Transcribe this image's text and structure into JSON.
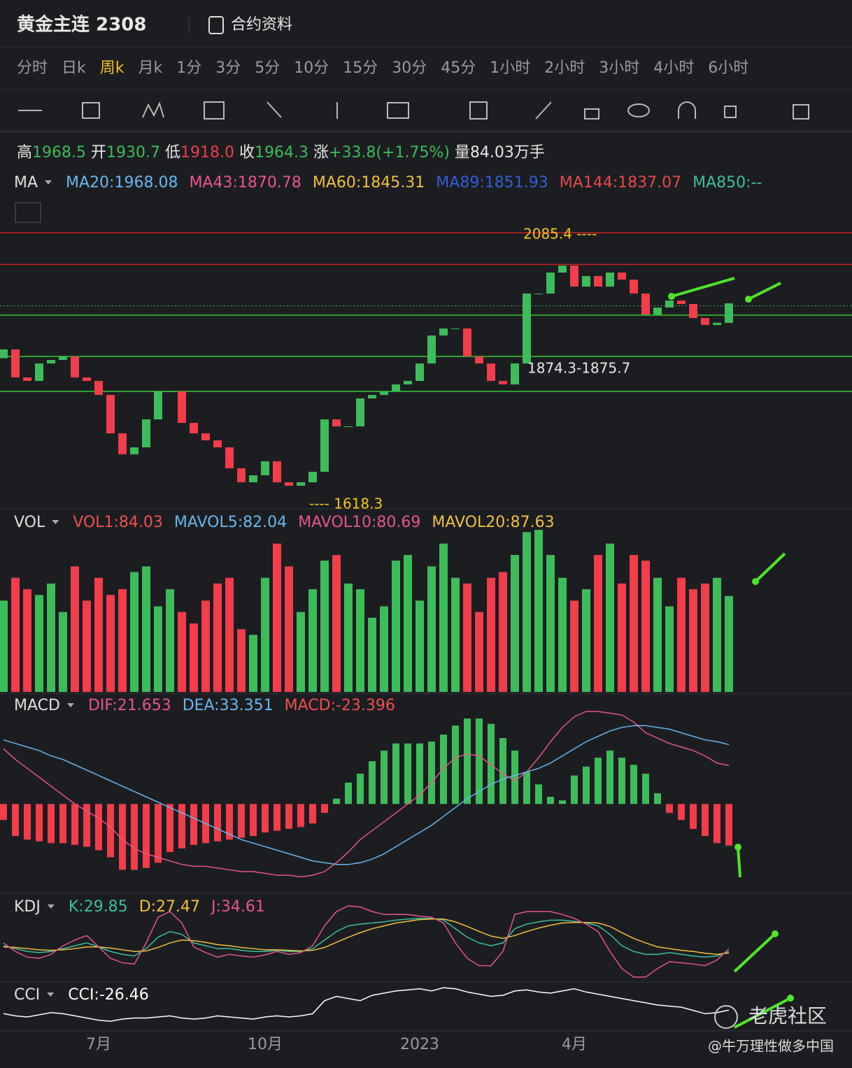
{
  "header": {
    "title": "黄金主连 2308",
    "contract": "合约资料"
  },
  "timeframes": [
    "分时",
    "日k",
    "周k",
    "月k",
    "1分",
    "3分",
    "5分",
    "10分",
    "15分",
    "30分",
    "45分",
    "1小时",
    "2小时",
    "3小时",
    "4小时",
    "6小时"
  ],
  "active_timeframe": "周k",
  "stats": [
    {
      "label": "高",
      "value": "1968.5"
    },
    {
      "label": "开",
      "value": "1930.7"
    },
    {
      "label": "低",
      "value": "1918.0"
    },
    {
      "label": "收",
      "value": "1964.3"
    },
    {
      "label": "涨",
      "value": "+33.8(+1.75%)"
    },
    {
      "label": "量",
      "value": "84.03万手"
    }
  ],
  "legends": {
    "ma": {
      "name": "MA",
      "items": [
        {
          "text": "MA20:1968.08",
          "color": "#6ab7f0"
        },
        {
          "text": "MA43:1870.78",
          "color": "#e8568a"
        },
        {
          "text": "MA60:1845.31",
          "color": "#f0c040"
        },
        {
          "text": "MA89:1851.93",
          "color": "#2f5fd8"
        },
        {
          "text": "MA144:1837.07",
          "color": "#e8484a"
        },
        {
          "text": "MA850:--",
          "color": "#3cc0a0"
        }
      ]
    },
    "vol": {
      "name": "VOL",
      "items": [
        {
          "text": "VOL1:84.03",
          "color": "#f05050"
        },
        {
          "text": "MAVOL5:82.04",
          "color": "#6ab7f0"
        },
        {
          "text": "MAVOL10:80.69",
          "color": "#e8568a"
        },
        {
          "text": "MAVOL20:87.63",
          "color": "#f0c040"
        }
      ]
    },
    "macd": {
      "name": "MACD",
      "items": [
        {
          "text": "DIF:21.653",
          "color": "#e8568a"
        },
        {
          "text": "DEA:33.351",
          "color": "#6ab7f0"
        },
        {
          "text": "MACD:-23.396",
          "color": "#f05050"
        }
      ]
    },
    "kdj": {
      "name": "KDJ",
      "items": [
        {
          "text": "K:29.85",
          "color": "#3cc0a0"
        },
        {
          "text": "D:27.47",
          "color": "#f0c040"
        },
        {
          "text": "J:34.61",
          "color": "#e8568a"
        }
      ]
    },
    "cci": {
      "name": "CCI",
      "items": [
        {
          "text": "CCI:-26.46",
          "color": "#ffffff"
        }
      ]
    }
  },
  "annotations": {
    "high": "2085.4 ----",
    "low": "---- 1618.3",
    "zone": "1874.3-1875.7"
  },
  "watermark": {
    "brand": "老虎社区",
    "author": "@牛万理性做多中国"
  },
  "chart_data": [
    {
      "type": "candlestick",
      "ylim": [
        1615,
        2101
      ],
      "categories": [
        null,
        null,
        null,
        null,
        null,
        null,
        null,
        null,
        "7月",
        null,
        null,
        null,
        null,
        null,
        null,
        null,
        null,
        null,
        null,
        null,
        null,
        null,
        "10月",
        null,
        null,
        null,
        null,
        null,
        null,
        null,
        null,
        null,
        null,
        null,
        null,
        "2023",
        null,
        null,
        null,
        null,
        null,
        null,
        null,
        null,
        null,
        null,
        null,
        null,
        "4月",
        null,
        null,
        null,
        null,
        null,
        null,
        null,
        null,
        null,
        null,
        null,
        null,
        null
      ],
      "up_color": "#3dbd5a",
      "down_color": "#f23d4a",
      "open": [
        1870,
        1885,
        1837,
        1831,
        1861,
        1867,
        1873,
        1837,
        1831,
        1807,
        1741,
        1705,
        1717,
        1765,
        1813,
        1813,
        1759,
        1741,
        1729,
        1717,
        1681,
        1657,
        1669,
        1693,
        1657,
        1651,
        1657,
        1675,
        1765,
        1753,
        1753,
        1801,
        1807,
        1813,
        1825,
        1831,
        1861,
        1909,
        1921,
        1921,
        1873,
        1861,
        1831,
        1825,
        1861,
        1981,
        1981,
        2017,
        2029,
        1993,
        2011,
        1993,
        2017,
        2005,
        1981,
        1945,
        1957,
        1969,
        1963,
        1939,
        1927,
        1930.7
      ],
      "close": [
        1885,
        1837,
        1831,
        1861,
        1867,
        1873,
        1837,
        1831,
        1807,
        1741,
        1705,
        1717,
        1765,
        1813,
        1813,
        1759,
        1741,
        1729,
        1717,
        1681,
        1657,
        1669,
        1693,
        1657,
        1651,
        1657,
        1675,
        1765,
        1753,
        1753,
        1801,
        1807,
        1813,
        1825,
        1831,
        1861,
        1909,
        1921,
        1921,
        1873,
        1861,
        1831,
        1825,
        1861,
        1981,
        1981,
        2017,
        2029,
        1993,
        2011,
        1993,
        2017,
        2005,
        1981,
        1945,
        1957,
        1969,
        1963,
        1939,
        1927,
        1931,
        1964.3
      ],
      "levels": [
        {
          "value": 2085.4,
          "color": "#d02020"
        },
        {
          "value": 2031,
          "color": "#d02020"
        },
        {
          "value": 1944,
          "color": "#30d030"
        },
        {
          "value": 1873,
          "color": "#30d030"
        },
        {
          "value": 1813,
          "color": "#30d030"
        }
      ],
      "last_line": 1960
    },
    {
      "type": "bar",
      "name": "VOL",
      "ylim": [
        0,
        150
      ],
      "values": [
        80,
        100,
        90,
        85,
        95,
        70,
        110,
        80,
        100,
        85,
        90,
        105,
        110,
        75,
        90,
        70,
        60,
        80,
        95,
        100,
        55,
        50,
        100,
        130,
        110,
        70,
        90,
        115,
        120,
        95,
        90,
        65,
        75,
        115,
        120,
        80,
        110,
        130,
        100,
        95,
        70,
        100,
        105,
        120,
        140,
        142,
        120,
        100,
        80,
        90,
        120,
        130,
        95,
        120,
        115,
        100,
        75,
        100,
        90,
        95,
        100,
        84.03
      ]
    },
    {
      "type": "macd",
      "ylim": [
        -49,
        59
      ],
      "hist": [
        -9,
        -18,
        -20,
        -21,
        -22,
        -22,
        -23,
        -24,
        -26,
        -30,
        -37,
        -37,
        -36,
        -33,
        -27,
        -25,
        -23,
        -22,
        -21,
        -20,
        -19,
        -18,
        -16,
        -15,
        -14,
        -13,
        -11,
        -5,
        3,
        12,
        17,
        24,
        30,
        34,
        34,
        34,
        35,
        39,
        44,
        48,
        48,
        45,
        37,
        30,
        18,
        11,
        4,
        2,
        16,
        21,
        26,
        30,
        26,
        22,
        17,
        6,
        -5,
        -9,
        -14,
        -18,
        -22,
        -23.396
      ],
      "series": [
        {
          "name": "DIF",
          "color": "#e8568a",
          "values": [
            31,
            25,
            20,
            15,
            10,
            5,
            0,
            -4,
            -8,
            -13,
            -20,
            -25,
            -28,
            -30,
            -32,
            -34,
            -35,
            -35,
            -36,
            -37,
            -38,
            -38,
            -39,
            -40,
            -40,
            -41,
            -40,
            -38,
            -33,
            -27,
            -20,
            -15,
            -10,
            -5,
            0,
            5,
            12,
            20,
            26,
            28,
            27,
            22,
            17,
            13,
            18,
            26,
            35,
            43,
            49,
            52,
            52,
            51,
            50,
            46,
            40,
            37,
            34,
            32,
            30,
            27,
            23,
            21.653
          ]
        },
        {
          "name": "DEA",
          "color": "#6ab7f0",
          "values": [
            36,
            34,
            32,
            30,
            27,
            25,
            22,
            19,
            16,
            13,
            10,
            7,
            4,
            1,
            -2,
            -5,
            -8,
            -11,
            -14,
            -17,
            -20,
            -22,
            -24,
            -26,
            -28,
            -30,
            -32,
            -33,
            -34,
            -34,
            -33,
            -31,
            -28,
            -24,
            -20,
            -16,
            -12,
            -7,
            -2,
            3,
            7,
            11,
            14,
            16,
            18,
            20,
            23,
            27,
            31,
            35,
            38,
            41,
            43,
            44,
            44,
            43,
            42,
            40,
            38,
            36,
            35,
            33.351
          ]
        }
      ]
    },
    {
      "type": "line",
      "name": "KDJ",
      "ylim": [
        -20,
        115
      ],
      "series": [
        {
          "name": "K",
          "color": "#3cc0a0",
          "values": [
            40,
            35,
            30,
            28,
            30,
            35,
            40,
            45,
            38,
            30,
            25,
            22,
            35,
            55,
            65,
            60,
            45,
            40,
            35,
            35,
            32,
            30,
            30,
            32,
            30,
            30,
            35,
            50,
            65,
            75,
            78,
            80,
            82,
            85,
            87,
            88,
            88,
            85,
            70,
            55,
            45,
            40,
            45,
            70,
            78,
            82,
            85,
            85,
            83,
            80,
            75,
            60,
            40,
            30,
            25,
            25,
            28,
            25,
            22,
            20,
            22,
            29.85
          ]
        },
        {
          "name": "D",
          "color": "#f0c040",
          "values": [
            38,
            37,
            35,
            33,
            32,
            33,
            35,
            38,
            38,
            36,
            33,
            30,
            31,
            37,
            45,
            50,
            49,
            46,
            42,
            40,
            37,
            35,
            33,
            33,
            32,
            31,
            32,
            37,
            46,
            55,
            63,
            70,
            75,
            80,
            83,
            86,
            87,
            87,
            82,
            74,
            65,
            57,
            53,
            58,
            65,
            71,
            76,
            80,
            81,
            81,
            80,
            74,
            63,
            53,
            45,
            38,
            35,
            32,
            30,
            27,
            25,
            27.47
          ]
        },
        {
          "name": "J",
          "color": "#e8568a",
          "values": [
            45,
            30,
            20,
            18,
            25,
            40,
            50,
            58,
            38,
            18,
            10,
            8,
            45,
            90,
            100,
            80,
            38,
            28,
            20,
            25,
            22,
            20,
            24,
            30,
            25,
            28,
            40,
            75,
            100,
            110,
            108,
            100,
            95,
            95,
            95,
            92,
            90,
            80,
            45,
            18,
            5,
            5,
            30,
            95,
            100,
            100,
            100,
            95,
            88,
            78,
            65,
            30,
            0,
            -15,
            -15,
            0,
            12,
            10,
            8,
            5,
            15,
            34.61
          ]
        }
      ]
    },
    {
      "type": "line",
      "name": "CCI",
      "ylim": [
        -200,
        200
      ],
      "series": [
        {
          "name": "CCI",
          "color": "#ffffff",
          "values": [
            -60,
            -80,
            -90,
            -70,
            -50,
            -60,
            -80,
            -100,
            -120,
            -130,
            -110,
            -100,
            -100,
            -90,
            -80,
            -100,
            -110,
            -100,
            -80,
            -90,
            -100,
            -110,
            -90,
            -80,
            -90,
            -80,
            -60,
            60,
            100,
            80,
            60,
            110,
            130,
            150,
            160,
            170,
            150,
            180,
            170,
            140,
            120,
            100,
            110,
            150,
            160,
            140,
            130,
            150,
            170,
            140,
            120,
            100,
            80,
            60,
            40,
            20,
            10,
            0,
            -30,
            -60,
            -50,
            -26.46
          ]
        }
      ]
    }
  ]
}
